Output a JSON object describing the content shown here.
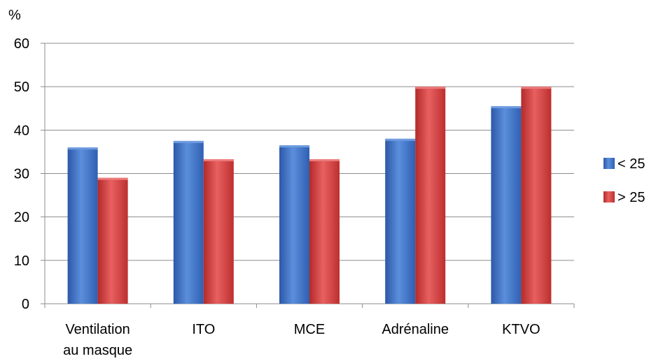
{
  "chart_data": {
    "type": "bar",
    "ylabel": "%",
    "ylim": [
      0,
      60
    ],
    "yticks": [
      0,
      10,
      20,
      30,
      40,
      50,
      60
    ],
    "grid": true,
    "legend_position": "right",
    "categories": [
      [
        "Ventilation",
        "au masque"
      ],
      [
        "ITO"
      ],
      [
        "MCE"
      ],
      [
        "Adrénaline"
      ],
      [
        "KTVO"
      ]
    ],
    "series": [
      {
        "name": "< 25",
        "color": "#3a6fc4",
        "values": [
          36,
          37.5,
          36.5,
          38,
          45.5
        ]
      },
      {
        "name": "> 25",
        "color": "#d23b3b",
        "values": [
          29,
          33.3,
          33.3,
          50,
          50
        ]
      }
    ]
  }
}
